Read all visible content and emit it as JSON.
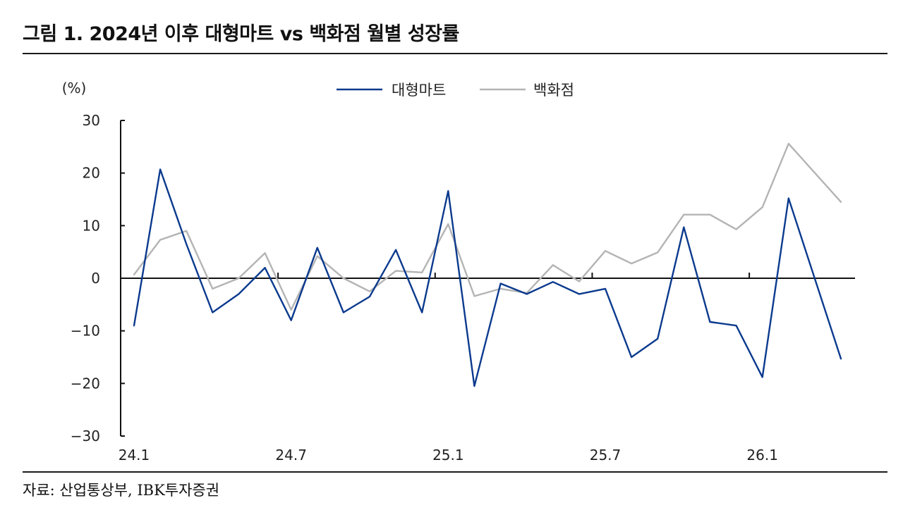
{
  "title": "그림 1. 2024년 이후 대형마트 vs 백화점 월별 성장률",
  "source": "자료: 산업통상부, IBK투자증권",
  "chart_data": {
    "type": "line",
    "yunit": "(%)",
    "ylim": [
      -30,
      30
    ],
    "yticks": [
      30,
      20,
      10,
      0,
      -10,
      -20,
      -30
    ],
    "ytick_labels": [
      "30",
      "20",
      "10",
      "0",
      "−10",
      "−20",
      "−30"
    ],
    "x": [
      "24.1",
      "24.2",
      "24.3",
      "24.4",
      "24.5",
      "24.6",
      "24.7",
      "24.8",
      "24.9",
      "24.10",
      "24.11",
      "24.12",
      "25.1",
      "25.2",
      "25.3",
      "25.4",
      "25.5",
      "25.6",
      "25.7",
      "25.8",
      "25.9",
      "25.10",
      "25.11",
      "25.12",
      "26.1",
      "26.2",
      "26.3",
      "26.4"
    ],
    "xtick_labels": [
      "24.1",
      "24.7",
      "25.1",
      "25.7",
      "26.1"
    ],
    "legend_position": "top-center",
    "grid": false,
    "series": [
      {
        "name": "대형마트",
        "color": "#0b3a8e",
        "values": [
          -9.0,
          20.7,
          6.5,
          -6.5,
          -3.0,
          2.0,
          -8.0,
          5.8,
          -6.5,
          -3.5,
          5.4,
          -6.5,
          16.6,
          -20.5,
          -1.0,
          -3.0,
          -0.7,
          -3.0,
          -2.0,
          -15.0,
          -11.5,
          9.7,
          -8.3,
          -9.0,
          -18.8,
          15.2,
          null,
          -15.3
        ]
      },
      {
        "name": "백화점",
        "color": "#b4b4b4",
        "values": [
          0.7,
          7.3,
          9.0,
          -2.0,
          0.0,
          4.8,
          -6.0,
          4.2,
          0.0,
          -2.5,
          1.4,
          1.1,
          10.3,
          -3.4,
          -2.0,
          -2.8,
          2.5,
          -0.6,
          5.2,
          2.8,
          4.9,
          12.1,
          12.1,
          9.3,
          13.5,
          25.6,
          null,
          14.5
        ]
      }
    ]
  }
}
